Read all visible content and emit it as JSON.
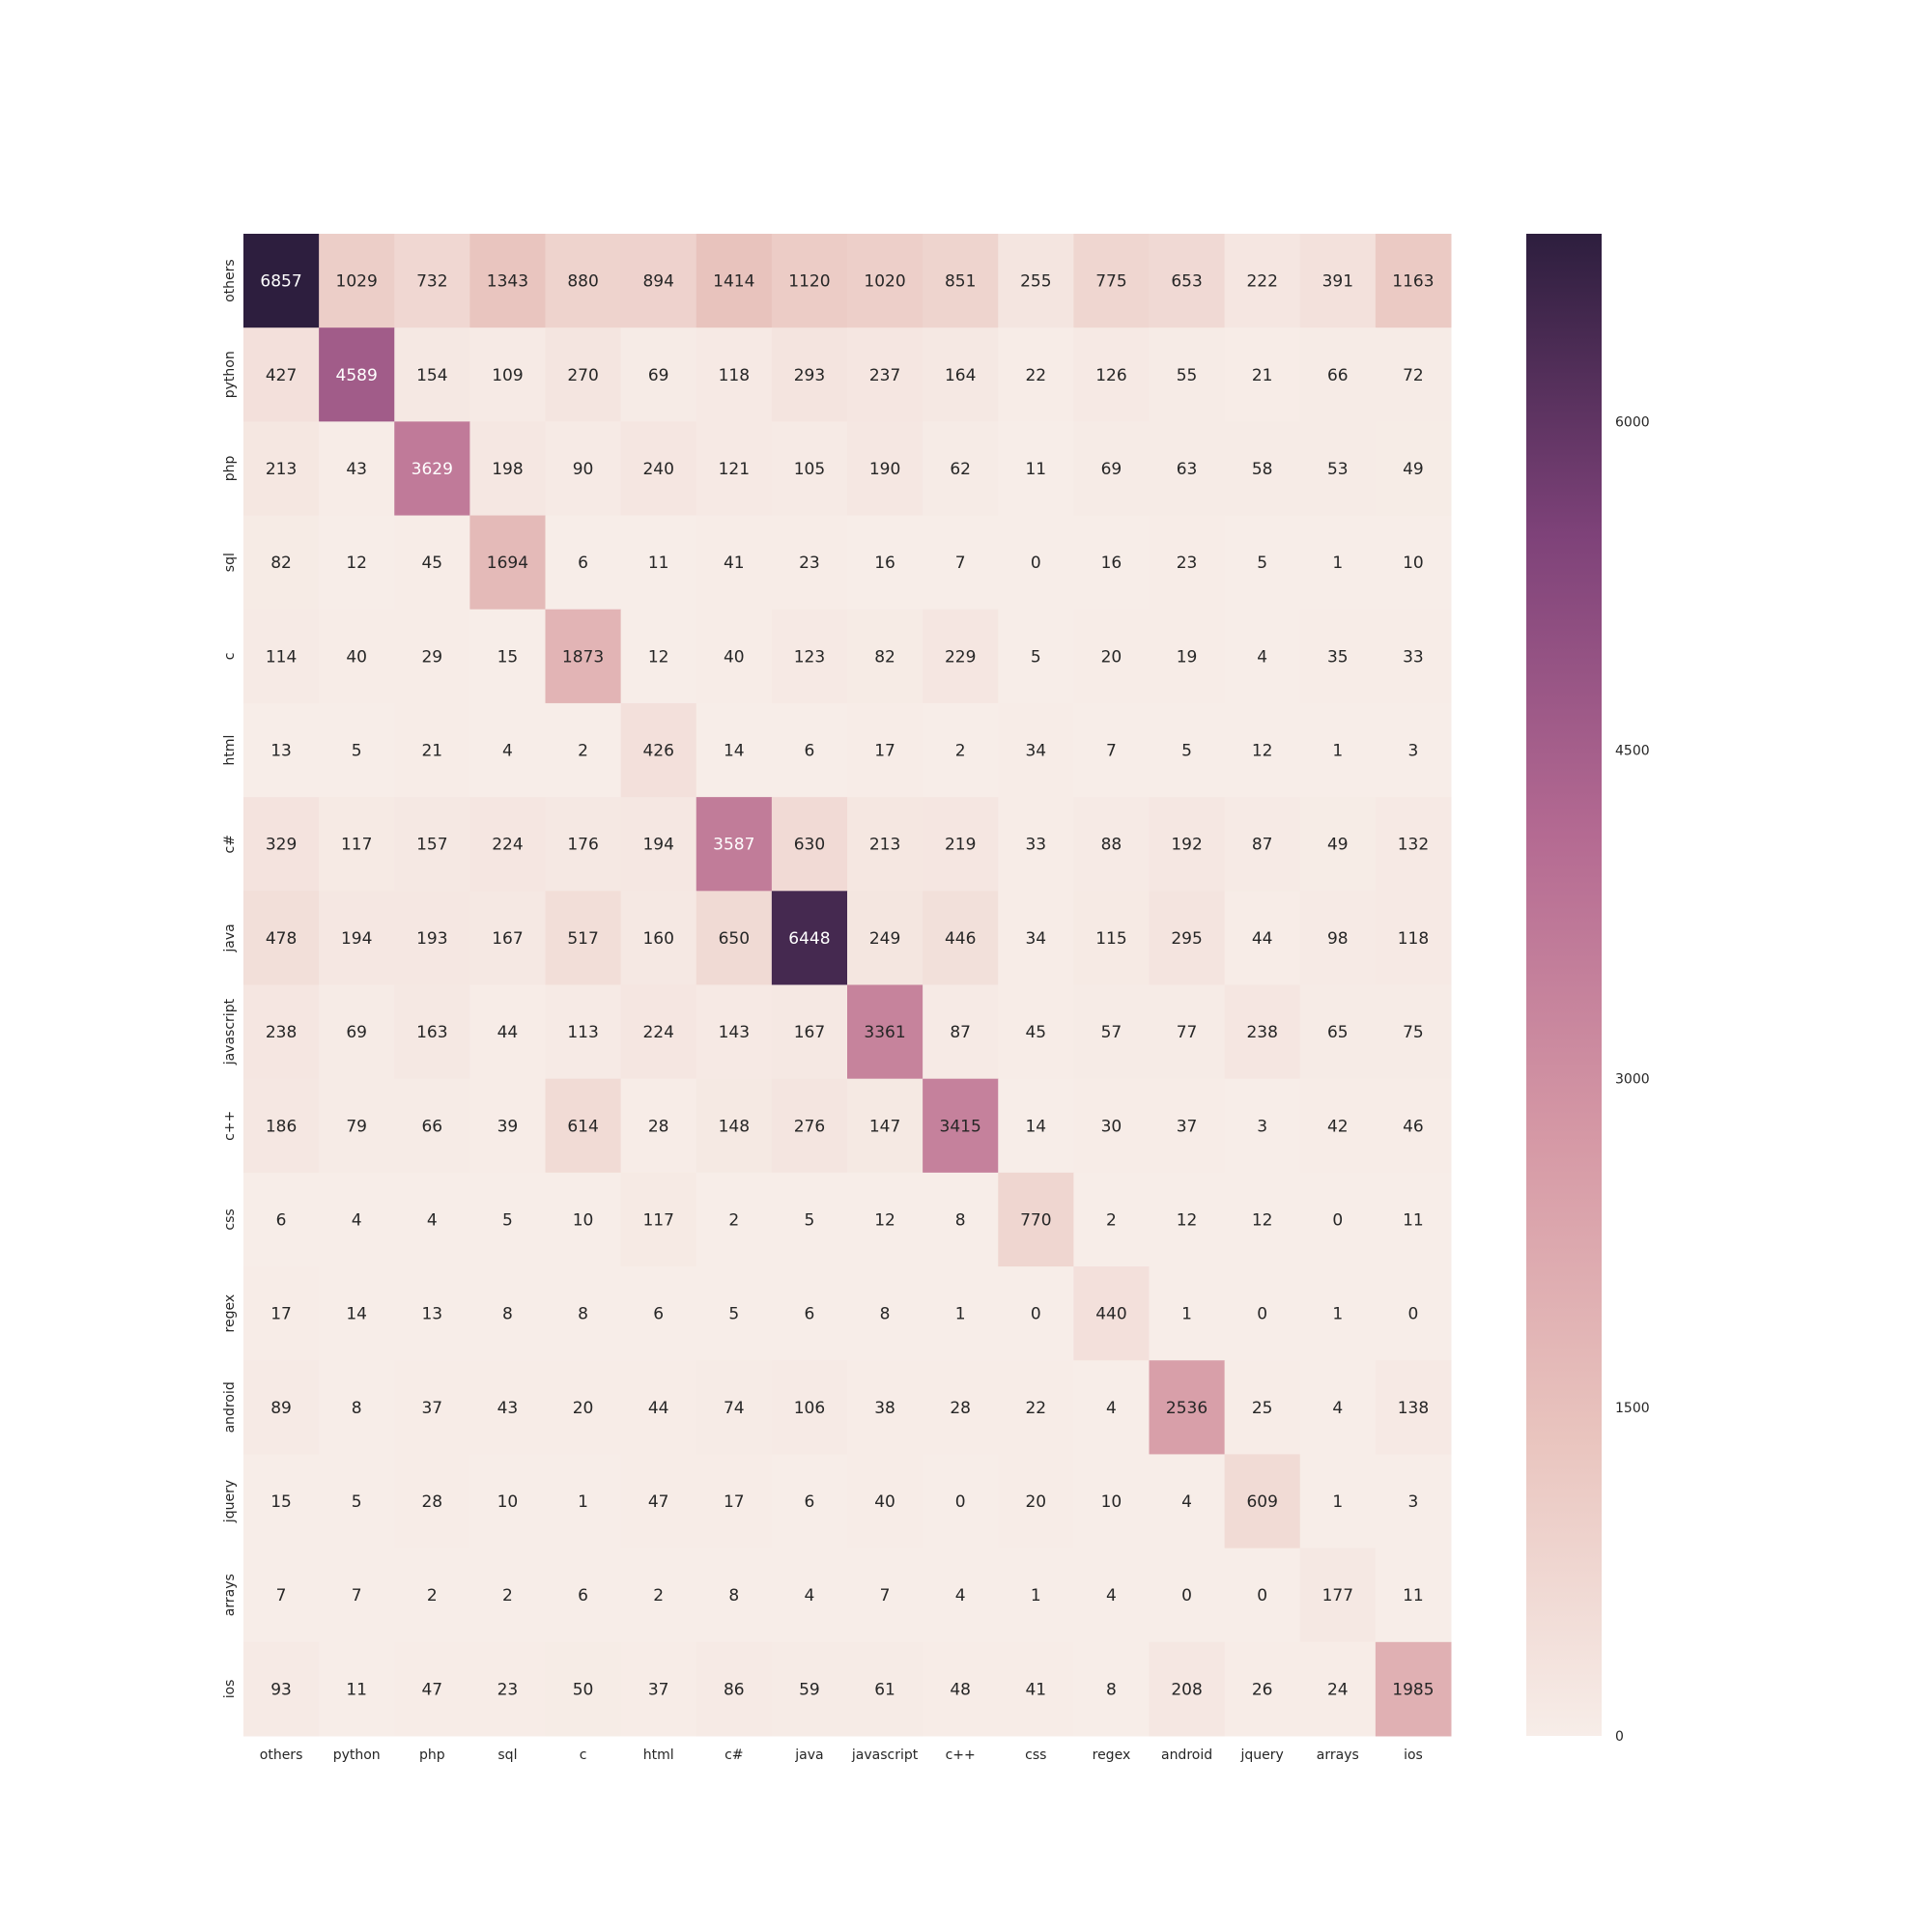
{
  "chart_data": {
    "type": "heatmap",
    "title": "",
    "xlabel": "",
    "ylabel": "",
    "x_categories": [
      "others",
      "python",
      "php",
      "sql",
      "c",
      "html",
      "c#",
      "java",
      "javascript",
      "c++",
      "css",
      "regex",
      "android",
      "jquery",
      "arrays",
      "ios"
    ],
    "y_categories": [
      "others",
      "python",
      "php",
      "sql",
      "c",
      "html",
      "c#",
      "java",
      "javascript",
      "c++",
      "css",
      "regex",
      "android",
      "jquery",
      "arrays",
      "ios"
    ],
    "values": [
      [
        6857,
        1029,
        732,
        1343,
        880,
        894,
        1414,
        1120,
        1020,
        851,
        255,
        775,
        653,
        222,
        391,
        1163
      ],
      [
        427,
        4589,
        154,
        109,
        270,
        69,
        118,
        293,
        237,
        164,
        22,
        126,
        55,
        21,
        66,
        72
      ],
      [
        213,
        43,
        3629,
        198,
        90,
        240,
        121,
        105,
        190,
        62,
        11,
        69,
        63,
        58,
        53,
        49
      ],
      [
        82,
        12,
        45,
        1694,
        6,
        11,
        41,
        23,
        16,
        7,
        0,
        16,
        23,
        5,
        1,
        10
      ],
      [
        114,
        40,
        29,
        15,
        1873,
        12,
        40,
        123,
        82,
        229,
        5,
        20,
        19,
        4,
        35,
        33
      ],
      [
        13,
        5,
        21,
        4,
        2,
        426,
        14,
        6,
        17,
        2,
        34,
        7,
        5,
        12,
        1,
        3
      ],
      [
        329,
        117,
        157,
        224,
        176,
        194,
        3587,
        630,
        213,
        219,
        33,
        88,
        192,
        87,
        49,
        132
      ],
      [
        478,
        194,
        193,
        167,
        517,
        160,
        650,
        6448,
        249,
        446,
        34,
        115,
        295,
        44,
        98,
        118
      ],
      [
        238,
        69,
        163,
        44,
        113,
        224,
        143,
        167,
        3361,
        87,
        45,
        57,
        77,
        238,
        65,
        75
      ],
      [
        186,
        79,
        66,
        39,
        614,
        28,
        148,
        276,
        147,
        3415,
        14,
        30,
        37,
        3,
        42,
        46
      ],
      [
        6,
        4,
        4,
        5,
        10,
        117,
        2,
        5,
        12,
        8,
        770,
        2,
        12,
        12,
        0,
        11
      ],
      [
        17,
        14,
        13,
        8,
        8,
        6,
        5,
        6,
        8,
        1,
        0,
        440,
        1,
        0,
        1,
        0
      ],
      [
        89,
        8,
        37,
        43,
        20,
        44,
        74,
        106,
        38,
        28,
        22,
        4,
        2536,
        25,
        4,
        138
      ],
      [
        15,
        5,
        28,
        10,
        1,
        47,
        17,
        6,
        40,
        0,
        20,
        10,
        4,
        609,
        1,
        3
      ],
      [
        7,
        7,
        2,
        2,
        6,
        2,
        8,
        4,
        7,
        4,
        1,
        4,
        0,
        0,
        177,
        11
      ],
      [
        93,
        11,
        47,
        23,
        50,
        37,
        86,
        59,
        61,
        48,
        41,
        8,
        208,
        26,
        24,
        1985
      ]
    ],
    "colorbar": {
      "range": [
        0,
        6857
      ],
      "ticks": [
        0,
        1500,
        3000,
        4500,
        6000
      ]
    },
    "colormap": [
      "#f7ede8",
      "#e9c4be",
      "#d598a5",
      "#b46a92",
      "#7e4279",
      "#2d1e3e"
    ]
  }
}
